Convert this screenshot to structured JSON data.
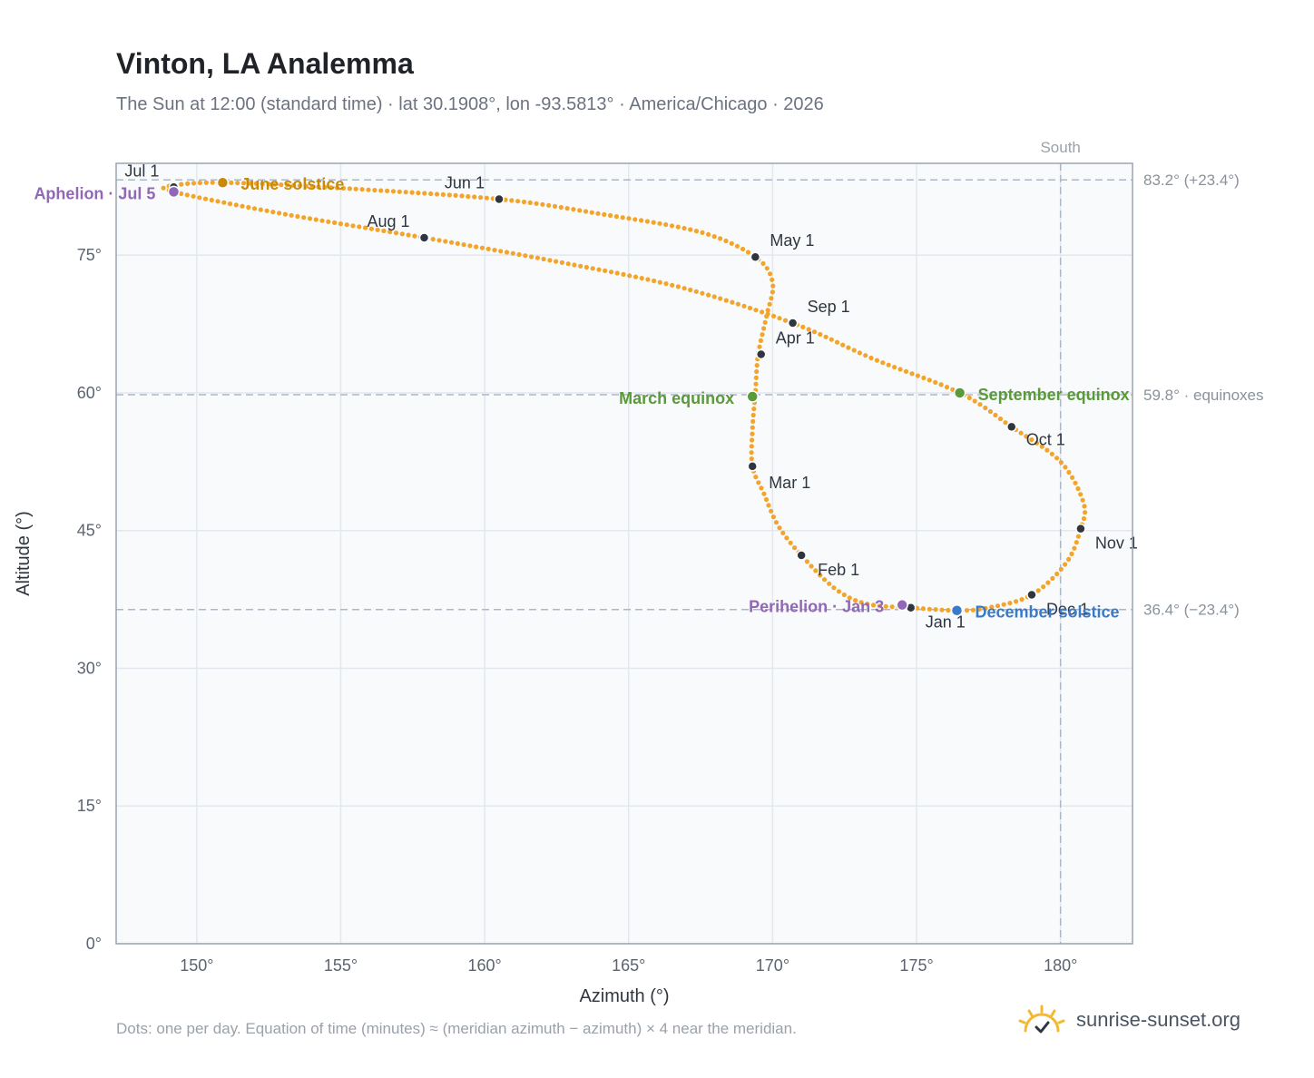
{
  "title": "Vinton, LA Analemma",
  "subtitle": "The Sun at 12:00 (standard time) · lat 30.1908°, lon -93.5813° · America/Chicago · 2026",
  "footnote": "Dots: one per day. Equation of time (minutes) ≈ (meridian azimuth − azimuth) × 4 near the meridian.",
  "brand": {
    "name": "sunrise-sunset.org",
    "icon": "sun-logo-icon"
  },
  "colors": {
    "curve": "#f2a52a",
    "month": "#2f3640",
    "solstice_june": "#c98a0a",
    "solstice_december": "#3a7ac8",
    "equinox": "#5a9a3a",
    "apsis": "#9068b5",
    "reference": "#aeb8c4",
    "plot_bg": "#f8fafc",
    "frame": "#9aa4b2"
  },
  "chart_data": {
    "type": "scatter",
    "title": "Vinton, LA Analemma",
    "xlabel": "Azimuth (°)",
    "ylabel": "Altitude (°)",
    "xlim": [
      147.2,
      182.5
    ],
    "ylim": [
      0,
      85
    ],
    "xticks": [
      150,
      155,
      160,
      165,
      170,
      175,
      180
    ],
    "xtick_labels": [
      "150°",
      "155°",
      "160°",
      "165°",
      "170°",
      "175°",
      "180°"
    ],
    "yticks": [
      0,
      15,
      30,
      45,
      60,
      75
    ],
    "ytick_labels": [
      "0°",
      "15°",
      "30°",
      "45°",
      "60°",
      "75°"
    ],
    "grid": true,
    "meridian": {
      "azimuth": 180,
      "label": "South"
    },
    "reference_lines": [
      {
        "altitude": 83.2,
        "label": "83.2° (+23.4°)"
      },
      {
        "altitude": 59.8,
        "label": "59.8° · equinoxes"
      },
      {
        "altitude": 36.4,
        "label": "36.4° (−23.4°)"
      }
    ],
    "curve": {
      "name": "Sun position, one dot per day",
      "points": [
        [
          174.8,
          36.6
        ],
        [
          173.3,
          37.0
        ],
        [
          172.2,
          38.6
        ],
        [
          171.0,
          42.3
        ],
        [
          170.2,
          45.5
        ],
        [
          169.7,
          49.0
        ],
        [
          169.3,
          52.0
        ],
        [
          169.3,
          56.0
        ],
        [
          169.4,
          60.0
        ],
        [
          169.5,
          64.2
        ],
        [
          169.8,
          68.5
        ],
        [
          170.0,
          72.0
        ],
        [
          169.4,
          74.8
        ],
        [
          167.5,
          77.5
        ],
        [
          164.0,
          79.5
        ],
        [
          160.5,
          81.1
        ],
        [
          155.0,
          82.3
        ],
        [
          151.0,
          82.9
        ],
        [
          149.2,
          82.6
        ],
        [
          149.2,
          81.9
        ],
        [
          153.0,
          79.5
        ],
        [
          157.9,
          76.9
        ],
        [
          162.5,
          74.3
        ],
        [
          166.8,
          71.5
        ],
        [
          170.7,
          67.6
        ],
        [
          173.5,
          63.7
        ],
        [
          176.5,
          60.0
        ],
        [
          178.3,
          56.3
        ],
        [
          180.0,
          52.5
        ],
        [
          180.8,
          48.0
        ],
        [
          180.7,
          45.2
        ],
        [
          180.2,
          41.5
        ],
        [
          179.0,
          38.0
        ],
        [
          177.5,
          36.6
        ],
        [
          176.4,
          36.3
        ],
        [
          174.8,
          36.6
        ]
      ]
    },
    "month_markers": [
      {
        "label": "Jan 1",
        "az": 174.8,
        "alt": 36.6
      },
      {
        "label": "Feb 1",
        "az": 171.0,
        "alt": 42.3
      },
      {
        "label": "Mar 1",
        "az": 169.3,
        "alt": 52.0
      },
      {
        "label": "Apr 1",
        "az": 169.6,
        "alt": 64.2
      },
      {
        "label": "May 1",
        "az": 169.4,
        "alt": 74.8
      },
      {
        "label": "Jun 1",
        "az": 160.5,
        "alt": 81.1
      },
      {
        "label": "Jul 1",
        "az": 149.2,
        "alt": 82.4
      },
      {
        "label": "Aug 1",
        "az": 157.9,
        "alt": 76.9
      },
      {
        "label": "Sep 1",
        "az": 170.7,
        "alt": 67.6
      },
      {
        "label": "Oct 1",
        "az": 178.3,
        "alt": 56.3
      },
      {
        "label": "Nov 1",
        "az": 180.7,
        "alt": 45.2
      },
      {
        "label": "Dec 1",
        "az": 179.0,
        "alt": 38.0
      }
    ],
    "events": [
      {
        "label": "June solstice",
        "az": 150.9,
        "alt": 82.9,
        "color": "#c98a0a"
      },
      {
        "label": "December solstice",
        "az": 176.4,
        "alt": 36.3,
        "color": "#3a7ac8"
      },
      {
        "label": "March equinox",
        "az": 169.3,
        "alt": 59.6,
        "color": "#5a9a3a"
      },
      {
        "label": "September equinox",
        "az": 176.5,
        "alt": 60.0,
        "color": "#5a9a3a"
      },
      {
        "label": "Aphelion · Jul 5",
        "az": 149.2,
        "alt": 81.9,
        "color": "#9068b5"
      },
      {
        "label": "Perihelion · Jan 3",
        "az": 174.5,
        "alt": 36.9,
        "color": "#9068b5"
      }
    ]
  }
}
